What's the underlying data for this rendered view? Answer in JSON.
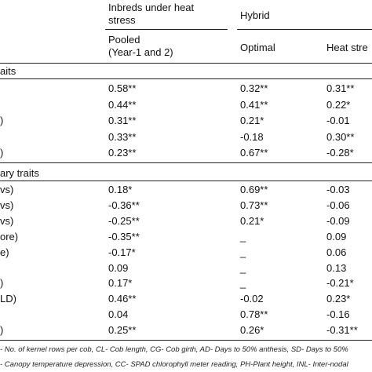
{
  "header": {
    "inbreds_line1": "Inbreds under heat",
    "inbreds_line2": "stress",
    "hybrid": "Hybrid",
    "pooled_line1": "Pooled",
    "pooled_line2": "(Year-1 and 2)",
    "optimal": "Optimal",
    "heat_stress": "Heat stre"
  },
  "sections": {
    "primary_label": "aits",
    "secondary_label": "ary traits"
  },
  "primary_rows": [
    {
      "label": "",
      "pooled": "0.58**",
      "optimal": "0.32**",
      "heat": "0.31**"
    },
    {
      "label": "",
      "pooled": "0.44**",
      "optimal": "0.41**",
      "heat": "0.22*"
    },
    {
      "label": ")",
      "pooled": "0.31**",
      "optimal": "0.21*",
      "heat": "-0.01"
    },
    {
      "label": "",
      "pooled": "0.33**",
      "optimal": "-0.18",
      "heat": "0.30**"
    },
    {
      "label": ")",
      "pooled": "0.23**",
      "optimal": "0.67**",
      "heat": "-0.28*"
    }
  ],
  "secondary_rows": [
    {
      "label": "vs)",
      "pooled": "0.18*",
      "optimal": "0.69**",
      "heat": "-0.03"
    },
    {
      "label": "vs)",
      "pooled": "-0.36**",
      "optimal": "0.73**",
      "heat": "-0.06"
    },
    {
      "label": "vs)",
      "pooled": "-0.25**",
      "optimal": "0.21*",
      "heat": "-0.09"
    },
    {
      "label": "ore)",
      "pooled": "-0.35**",
      "optimal": "_",
      "heat": "0.09"
    },
    {
      "label": "e)",
      "pooled": "-0.17*",
      "optimal": "_",
      "heat": "0.06"
    },
    {
      "label": "",
      "pooled": "0.09",
      "optimal": "_",
      "heat": "0.13"
    },
    {
      "label": ")",
      "pooled": "0.17*",
      "optimal": "_",
      "heat": "-0.21*"
    },
    {
      "label": "LD)",
      "pooled": "0.46**",
      "optimal": "-0.02",
      "heat": "0.23*"
    },
    {
      "label": "",
      "pooled": "0.04",
      "optimal": "0.78**",
      "heat": "-0.16"
    },
    {
      "label": ")",
      "pooled": "0.25**",
      "optimal": "0.26*",
      "heat": "-0.31**"
    }
  ],
  "footnote": {
    "line1": "- No. of kernel rows per cob, CL- Cob length, CG- Cob girth, AD- Days to 50% anthesis, SD- Days to 50%",
    "line2": "- Canopy temperature depression, CC- SPAD chlorophyll meter reading, PH-Plant height, INL- Inter-nodal"
  }
}
